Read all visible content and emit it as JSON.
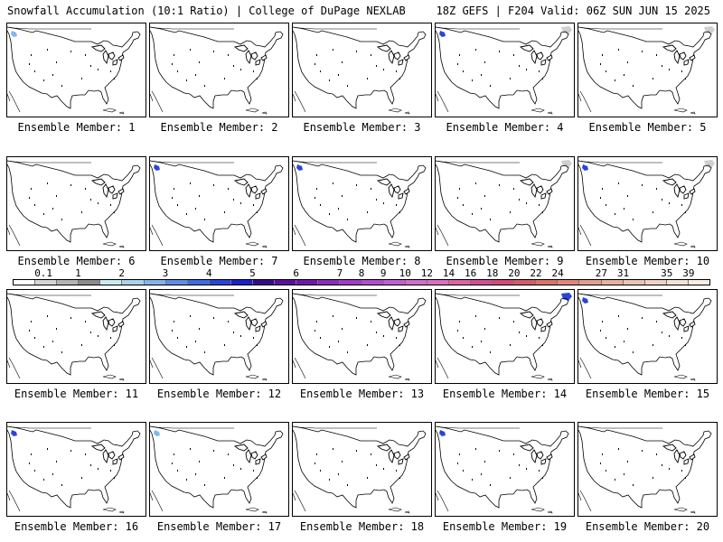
{
  "header": {
    "left": "Snowfall Accumulation (10:1 Ratio) | College of DuPage NEXLAB",
    "right": "18Z GEFS | F204 Valid: 06Z SUN JUN 15 2025"
  },
  "members": [
    {
      "label": "Ensemble Member: 1",
      "snow": [
        {
          "region": "pacific-nw",
          "level": "light-blue"
        }
      ]
    },
    {
      "label": "Ensemble Member: 2",
      "snow": []
    },
    {
      "label": "Ensemble Member: 3",
      "snow": []
    },
    {
      "label": "Ensemble Member: 4",
      "snow": [
        {
          "region": "pacific-nw",
          "level": "blue"
        },
        {
          "region": "northeast-corner",
          "level": "gray"
        }
      ]
    },
    {
      "label": "Ensemble Member: 5",
      "snow": [
        {
          "region": "northeast-corner",
          "level": "gray"
        }
      ]
    },
    {
      "label": "Ensemble Member: 6",
      "snow": []
    },
    {
      "label": "Ensemble Member: 7",
      "snow": [
        {
          "region": "pacific-nw",
          "level": "blue"
        }
      ]
    },
    {
      "label": "Ensemble Member: 8",
      "snow": [
        {
          "region": "pacific-nw",
          "level": "blue"
        }
      ]
    },
    {
      "label": "Ensemble Member: 9",
      "snow": [
        {
          "region": "northeast-corner",
          "level": "gray"
        }
      ]
    },
    {
      "label": "Ensemble Member: 10",
      "snow": [
        {
          "region": "pacific-nw",
          "level": "blue"
        },
        {
          "region": "northeast-corner",
          "level": "gray"
        }
      ]
    },
    {
      "label": "Ensemble Member: 11",
      "snow": []
    },
    {
      "label": "Ensemble Member: 12",
      "snow": []
    },
    {
      "label": "Ensemble Member: 13",
      "snow": []
    },
    {
      "label": "Ensemble Member: 14",
      "snow": [
        {
          "region": "northeast-corner",
          "level": "blue"
        }
      ]
    },
    {
      "label": "Ensemble Member: 15",
      "snow": [
        {
          "region": "pacific-nw",
          "level": "blue"
        }
      ]
    },
    {
      "label": "Ensemble Member: 16",
      "snow": [
        {
          "region": "pacific-nw",
          "level": "blue"
        }
      ]
    },
    {
      "label": "Ensemble Member: 17",
      "snow": [
        {
          "region": "pacific-nw",
          "level": "light-blue"
        }
      ]
    },
    {
      "label": "Ensemble Member: 18",
      "snow": []
    },
    {
      "label": "Ensemble Member: 19",
      "snow": [
        {
          "region": "pacific-nw",
          "level": "blue"
        }
      ]
    },
    {
      "label": "Ensemble Member: 20",
      "snow": []
    }
  ],
  "colorbar": {
    "labels": [
      "0.1",
      "1",
      "2",
      "3",
      "4",
      "5",
      "6",
      "7",
      "8",
      "9",
      "10",
      "12",
      "14",
      "16",
      "18",
      "20",
      "22",
      "24",
      "27",
      "31",
      "35",
      "39"
    ],
    "colors": [
      "#ffffff",
      "#d6d6d6",
      "#b4b4b4",
      "#8c8c8c",
      "#c6ecf0",
      "#a9d2f0",
      "#84b4ec",
      "#5f8ee8",
      "#3f6ae2",
      "#2a45d8",
      "#1a22c8",
      "#3a0a8c",
      "#5a0fa0",
      "#7017b0",
      "#8a2cc0",
      "#a03cc8",
      "#b44cd0",
      "#c45ed6",
      "#d06ecc",
      "#d870c0",
      "#dc62a8",
      "#d64e92",
      "#d44a78",
      "#d65a6a",
      "#dc7268",
      "#e0887a",
      "#e49c8c",
      "#e8b09e",
      "#ecc2b2",
      "#f0d2c4",
      "#f4e2d6",
      "#f8eee4"
    ]
  },
  "snow_colors": {
    "light-blue": "#84b4ec",
    "blue": "#2a45d8",
    "gray": "#cfcfcf"
  }
}
